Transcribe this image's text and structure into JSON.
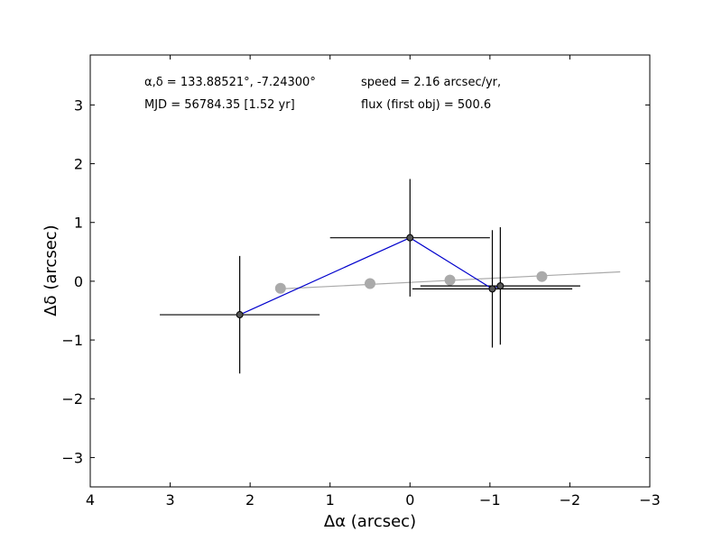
{
  "chart_data": {
    "type": "scatter",
    "title": "",
    "xlabel": "Δα (arcsec)",
    "ylabel": "Δδ (arcsec)",
    "xlim": [
      4,
      -3
    ],
    "ylim": [
      -3.5,
      3.85
    ],
    "x_inverted": true,
    "grid": false,
    "xticks": [
      4,
      3,
      2,
      1,
      0,
      -1,
      -2,
      -3
    ],
    "xtick_labels": [
      "4",
      "3",
      "2",
      "1",
      "0",
      "−1",
      "−2",
      "−3"
    ],
    "yticks": [
      3,
      2,
      1,
      0,
      -1,
      -2,
      -3
    ],
    "ytick_labels": [
      "3",
      "2",
      "1",
      "0",
      "−1",
      "−2",
      "−3"
    ],
    "annotations": {
      "coords": "α,δ = 133.88521°, -7.24300°",
      "speed": "speed = 2.16 arcsec/yr,",
      "mjd": "MJD = 56784.35 [1.52 yr]",
      "flux": "flux (first obj) = 500.6"
    },
    "series": [
      {
        "kind": "observations",
        "color": "#000000",
        "marker_fill": "#555555",
        "path_color": "#0000cc",
        "points": [
          {
            "x": 2.13,
            "y": -0.57,
            "xerr": 1.0,
            "yerr": 1.0
          },
          {
            "x": 0.0,
            "y": 0.74,
            "xerr": 1.0,
            "yerr": 1.0
          },
          {
            "x": -1.03,
            "y": -0.13,
            "xerr": 1.0,
            "yerr": 1.0
          },
          {
            "x": -1.13,
            "y": -0.08,
            "xerr": 1.0,
            "yerr": 1.0
          }
        ]
      },
      {
        "kind": "model",
        "color": "#aaaaaa",
        "line": {
          "x": [
            1.62,
            -2.63
          ],
          "y": [
            -0.13,
            0.16
          ]
        },
        "points": [
          {
            "x": 1.62,
            "y": -0.12
          },
          {
            "x": 0.5,
            "y": -0.04
          },
          {
            "x": -0.5,
            "y": 0.02
          },
          {
            "x": -1.65,
            "y": 0.08
          }
        ]
      }
    ]
  }
}
